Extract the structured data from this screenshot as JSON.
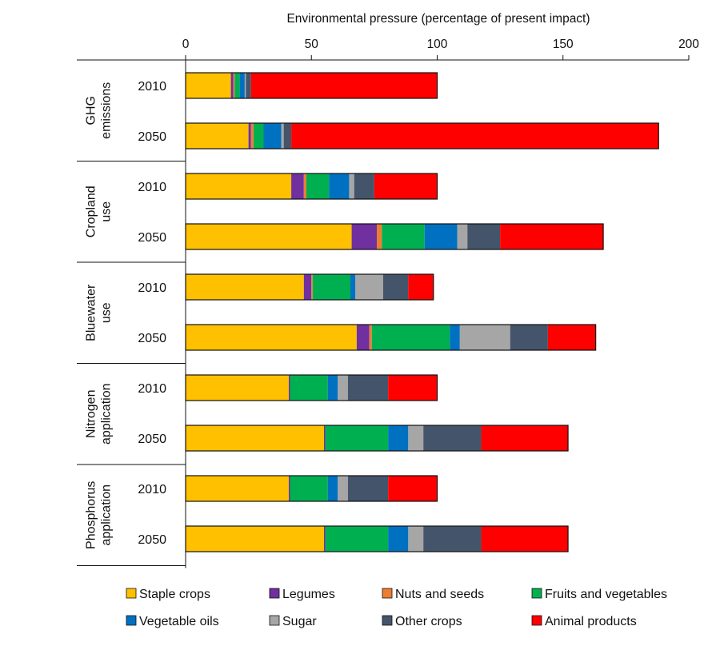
{
  "chart_data": {
    "type": "bar",
    "orientation": "horizontal",
    "stacked": true,
    "title": "Environmental pressure (percentage of present impact)",
    "xlim": [
      0,
      200
    ],
    "xticks": [
      0,
      50,
      100,
      150,
      200
    ],
    "grid": false,
    "legend_position": "bottom",
    "groups": [
      {
        "label": "GHG emissions",
        "label_lines": [
          "GHG",
          "emissions"
        ]
      },
      {
        "label": "Cropland use",
        "label_lines": [
          "Cropland",
          "use"
        ]
      },
      {
        "label": "Bluewater use",
        "label_lines": [
          "Bluewater",
          "use"
        ]
      },
      {
        "label": "Nitrogen application",
        "label_lines": [
          "Nitrogen",
          "application"
        ]
      },
      {
        "label": "Phosphorus application",
        "label_lines": [
          "Phosphorus",
          "application"
        ]
      }
    ],
    "categories": [
      "GHG emissions 2010",
      "GHG emissions 2050",
      "Cropland use 2010",
      "Cropland use 2050",
      "Bluewater use 2010",
      "Bluewater use 2050",
      "Nitrogen application 2010",
      "Nitrogen application 2050",
      "Phosphorus application 2010",
      "Phosphorus application 2050"
    ],
    "year_labels": [
      "2010",
      "2050",
      "2010",
      "2050",
      "2010",
      "2050",
      "2010",
      "2050",
      "2010",
      "2050"
    ],
    "series": [
      {
        "name": "Staple crops",
        "color": "#FFC000",
        "values": [
          18,
          25,
          42,
          66,
          47,
          68,
          41,
          55,
          41,
          55
        ]
      },
      {
        "name": "Legumes",
        "color": "#7030A0",
        "values": [
          1,
          1,
          5,
          10,
          3,
          5,
          0.5,
          0.5,
          0.5,
          0.5
        ]
      },
      {
        "name": "Nuts and seeds",
        "color": "#ED7D31",
        "values": [
          0.5,
          1,
          1,
          2,
          0.5,
          1,
          0,
          0,
          0,
          0
        ]
      },
      {
        "name": "Fruits and vegetables",
        "color": "#00B050",
        "values": [
          2,
          4,
          9,
          17,
          15,
          31,
          15,
          25,
          15,
          25
        ]
      },
      {
        "name": "Vegetable oils",
        "color": "#0070C0",
        "values": [
          2,
          7,
          8,
          13,
          2,
          4,
          4,
          8,
          4,
          8
        ]
      },
      {
        "name": "Sugar",
        "color": "#A6A6A6",
        "values": [
          0.5,
          1,
          2,
          4,
          11,
          20,
          4,
          6,
          4,
          6
        ]
      },
      {
        "name": "Other crops",
        "color": "#44546A",
        "values": [
          2,
          3,
          8,
          13,
          10,
          15,
          16,
          23,
          16,
          23
        ]
      },
      {
        "name": "Animal products",
        "color": "#FF0000",
        "values": [
          74,
          146,
          25,
          41,
          10,
          19,
          19.5,
          34.5,
          19.5,
          34.5
        ]
      }
    ]
  }
}
